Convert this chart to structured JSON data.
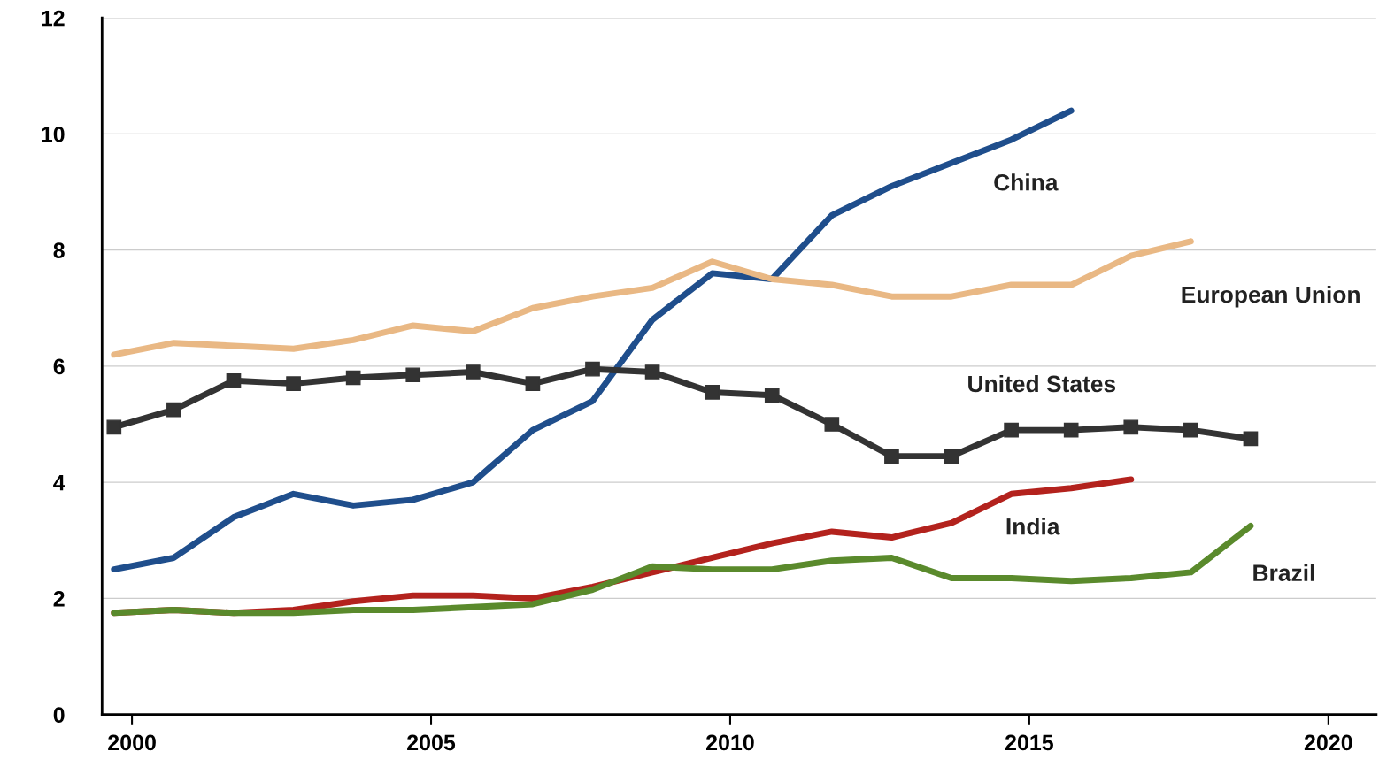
{
  "chart_data": {
    "type": "line",
    "xlim": [
      1999.5,
      2020.8
    ],
    "xticks": [
      2000,
      2005,
      2010,
      2015,
      2020
    ],
    "ylim": [
      0,
      12
    ],
    "yticks": [
      0,
      2,
      4,
      6,
      8,
      10,
      12
    ],
    "grid": "y",
    "legend": false,
    "line_style": "solid",
    "series": [
      {
        "name": "China",
        "color": "#1f4e8c",
        "marker": "none",
        "x": [
          1999.7,
          2000.7,
          2001.7,
          2002.7,
          2003.7,
          2004.7,
          2005.7,
          2006.7,
          2007.7,
          2008.7,
          2009.7,
          2010.7,
          2011.7,
          2012.7,
          2013.7,
          2014.7,
          2015.7
        ],
        "values": [
          2.5,
          2.7,
          3.4,
          3.8,
          3.6,
          3.7,
          4.0,
          4.9,
          5.4,
          6.8,
          7.6,
          7.5,
          8.6,
          9.1,
          9.5,
          9.9,
          10.4
        ]
      },
      {
        "name": "European Union",
        "color": "#e9b884",
        "marker": "none",
        "x": [
          1999.7,
          2000.7,
          2001.7,
          2002.7,
          2003.7,
          2004.7,
          2005.7,
          2006.7,
          2007.7,
          2008.7,
          2009.7,
          2010.7,
          2011.7,
          2012.7,
          2013.7,
          2014.7,
          2015.7,
          2016.7,
          2017.7
        ],
        "values": [
          6.2,
          6.4,
          6.35,
          6.3,
          6.45,
          6.7,
          6.6,
          7.0,
          7.2,
          7.35,
          7.8,
          7.5,
          7.4,
          7.2,
          7.2,
          7.4,
          7.4,
          7.9,
          8.15
        ]
      },
      {
        "name": "United States",
        "color": "#333333",
        "marker": "square",
        "x": [
          1999.7,
          2000.7,
          2001.7,
          2002.7,
          2003.7,
          2004.7,
          2005.7,
          2006.7,
          2007.7,
          2008.7,
          2009.7,
          2010.7,
          2011.7,
          2012.7,
          2013.7,
          2014.7,
          2015.7,
          2016.7,
          2017.7,
          2018.7
        ],
        "values": [
          4.95,
          5.25,
          5.75,
          5.7,
          5.8,
          5.85,
          5.9,
          5.7,
          5.95,
          5.9,
          5.55,
          5.5,
          5.0,
          4.45,
          4.45,
          4.9,
          4.9,
          4.95,
          4.9,
          4.75
        ]
      },
      {
        "name": "India",
        "color": "#b3221d",
        "marker": "none",
        "x": [
          1999.7,
          2000.7,
          2001.7,
          2002.7,
          2003.7,
          2004.7,
          2005.7,
          2006.7,
          2007.7,
          2008.7,
          2009.7,
          2010.7,
          2011.7,
          2012.7,
          2013.7,
          2014.7,
          2015.7,
          2016.7
        ],
        "values": [
          1.75,
          1.8,
          1.75,
          1.8,
          1.95,
          2.05,
          2.05,
          2.0,
          2.2,
          2.45,
          2.7,
          2.95,
          3.15,
          3.05,
          3.3,
          3.8,
          3.9,
          4.05
        ]
      },
      {
        "name": "Brazil",
        "color": "#5a8a2c",
        "marker": "none",
        "x": [
          1999.7,
          2000.7,
          2001.7,
          2002.7,
          2003.7,
          2004.7,
          2005.7,
          2006.7,
          2007.7,
          2008.7,
          2009.7,
          2010.7,
          2011.7,
          2012.7,
          2013.7,
          2014.7,
          2015.7,
          2016.7,
          2017.7,
          2018.7
        ],
        "values": [
          1.75,
          1.8,
          1.75,
          1.75,
          1.8,
          1.8,
          1.85,
          1.9,
          2.15,
          2.55,
          2.5,
          2.5,
          2.65,
          2.7,
          2.35,
          2.35,
          2.3,
          2.35,
          2.45,
          3.25
        ]
      }
    ]
  }
}
